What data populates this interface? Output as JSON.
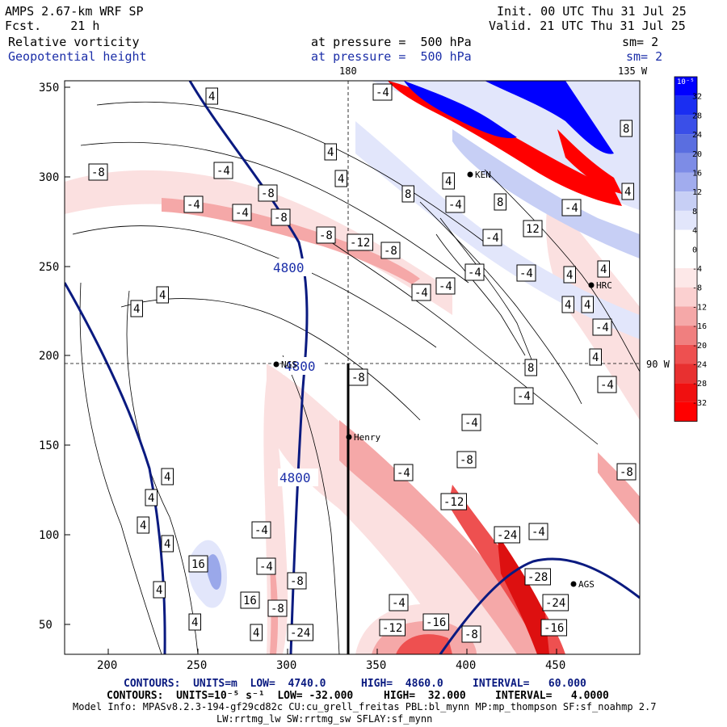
{
  "header": {
    "model": "AMPS 2.67-km WRF SP",
    "fcst": "Fcst.    21 h",
    "init": "Init. 00 UTC Thu 31 Jul 25",
    "valid": "Valid. 21 UTC Thu 31 Jul 25",
    "field1_name": "Relative vorticity",
    "field1_level": "at pressure =  500 hPa",
    "field1_sm": "sm= 2",
    "field2_name": "Geopotential height",
    "field2_level": "at pressure =  500 hPa",
    "field2_sm": "sm= 2"
  },
  "map_labels": {
    "lon_180": "180",
    "lon_135w": "135 W",
    "lon_90w": "90 W",
    "stations": [
      "KEN",
      "HRC",
      "NGS",
      "Henry",
      "AGS"
    ],
    "height_contour_label": "4800"
  },
  "axes": {
    "x_ticks": [
      "200",
      "250",
      "300",
      "350",
      "400",
      "450"
    ],
    "y_ticks": [
      "350",
      "300",
      "250",
      "200",
      "150",
      "100",
      "50"
    ]
  },
  "colorbar": {
    "units": "10⁻⁵ s⁻¹",
    "labels": [
      "32",
      "28",
      "24",
      "20",
      "16",
      "12",
      "8",
      "4",
      "0",
      "-4",
      "-8",
      "-12",
      "-16",
      "-20",
      "-24",
      "-28",
      "-32"
    ],
    "positive_color": "#0000ff",
    "negative_color": "#ff0000"
  },
  "contour_labels": {
    "vorticity": [
      "-4",
      "-8",
      "-12",
      "-16",
      "-24",
      "-28",
      "4",
      "8",
      "12",
      "16"
    ]
  },
  "footer": {
    "line1_a": "CONTOURS:  UNITS=m  LOW=  4740.0",
    "line1_b": "HIGH=  4860.0",
    "line1_c": "INTERVAL=   60.000",
    "line2_a": "CONTOURS:  UNITS=10⁻⁵ s⁻¹  LOW= -32.000",
    "line2_b": "HIGH=  32.000",
    "line2_c": "INTERVAL=   4.0000",
    "line3": "Model Info: MPASv8.2.3-194-gf29cd82c CU:cu_grell_freitas PBL:bl_mynn MP:mp_thompson SF:sf_noahmp 2.7",
    "line4": "LW:rrtmg_lw SW:rrtmg_sw SFLAY:sf_mynn"
  }
}
